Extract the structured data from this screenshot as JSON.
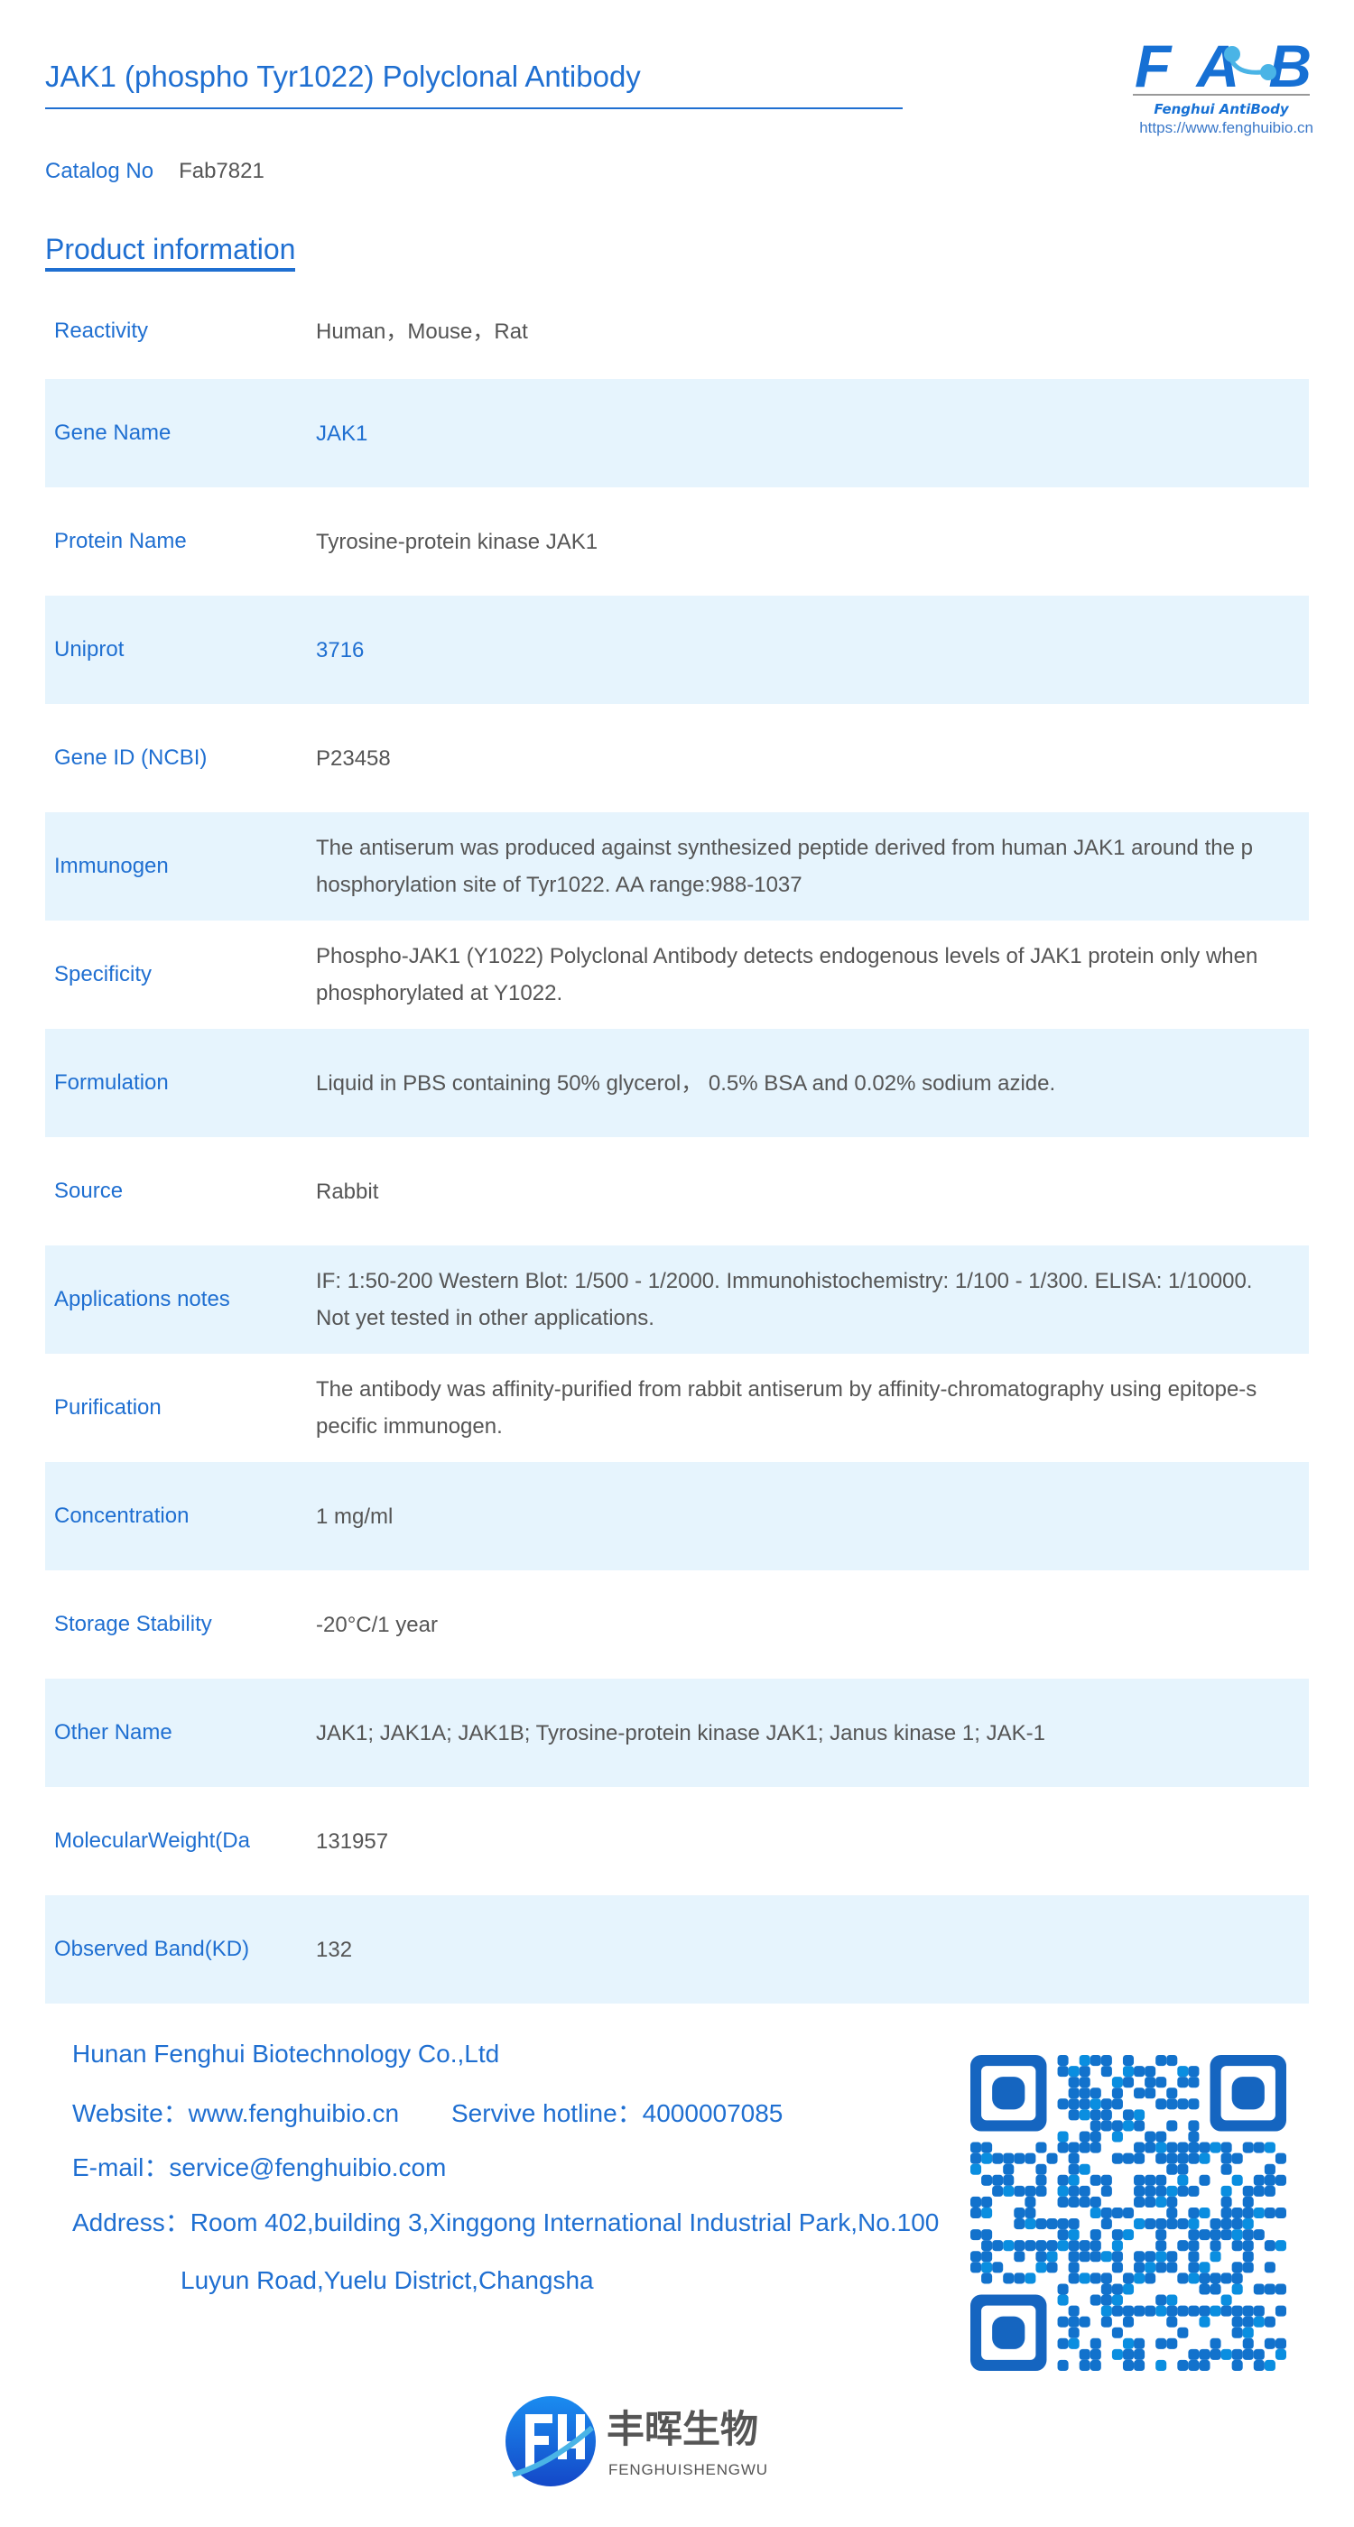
{
  "header": {
    "title": "JAK1 (phospho Tyr1022) Polyclonal Antibody",
    "logo_text": "FAB",
    "logo_tagline": "Fenghui AntiBody",
    "url": "https://www.fenghuibio.cn"
  },
  "catalog": {
    "label": "Catalog No",
    "value": "Fab7821"
  },
  "section_title": "Product information",
  "rows": [
    {
      "label": "Reactivity",
      "value": "Human，Mouse，Rat"
    },
    {
      "label": "Gene Name",
      "value": "JAK1",
      "blue": true
    },
    {
      "label": "Protein Name",
      "value": "Tyrosine-protein kinase JAK1"
    },
    {
      "label": "Uniprot",
      "value": "3716",
      "blue": true
    },
    {
      "label": "Gene ID (NCBI)",
      "value": "P23458"
    },
    {
      "label": "Immunogen",
      "value": "The antiserum was produced against synthesized peptide derived from human JAK1 around the phosphorylation site of Tyr1022. AA range:988-1037"
    },
    {
      "label": "Specificity",
      "value": "Phospho-JAK1 (Y1022) Polyclonal Antibody detects endogenous levels of JAK1 protein only when phosphorylated at Y1022."
    },
    {
      "label": "Formulation",
      "value": "Liquid in PBS containing 50% glycerol， 0.5% BSA and 0.02% sodium azide."
    },
    {
      "label": "Source",
      "value": "Rabbit"
    },
    {
      "label": "Applications notes",
      "value": "IF: 1:50-200 Western Blot: 1/500 - 1/2000. Immunohistochemistry: 1/100 - 1/300. ELISA: 1/10000. Not yet tested in other applications."
    },
    {
      "label": "Purification",
      "value": "The antibody was affinity-purified from rabbit antiserum by affinity-chromatography using epitope-specific immunogen."
    },
    {
      "label": "Concentration",
      "value": "1 mg/ml"
    },
    {
      "label": "Storage Stability",
      "value": "-20°C/1 year"
    },
    {
      "label": "Other Name",
      "value": "JAK1; JAK1A; JAK1B; Tyrosine-protein kinase JAK1; Janus kinase 1; JAK-1"
    },
    {
      "label": "MolecularWeight(Da",
      "value": "131957"
    },
    {
      "label": "Observed Band(KD)",
      "value": "132"
    }
  ],
  "footer": {
    "company": "Hunan Fenghui Biotechnology Co.,Ltd",
    "website": "Website：www.fenghuibio.cn",
    "hotline": "Servive hotline：4000007085",
    "email": "E-mail：service@fenghuibio.com",
    "address1": "Address：Room 402,building 3,Xinggong International Industrial Park,No.100",
    "address2": "Luyun Road,Yuelu District,Changsha",
    "brand_cn": "丰晖生物",
    "brand_pinyin": "FENGHUISHENGWU"
  },
  "colors": {
    "accent": "#1f6fd1",
    "row_shade": "#e6f4fd",
    "text": "#555555"
  }
}
